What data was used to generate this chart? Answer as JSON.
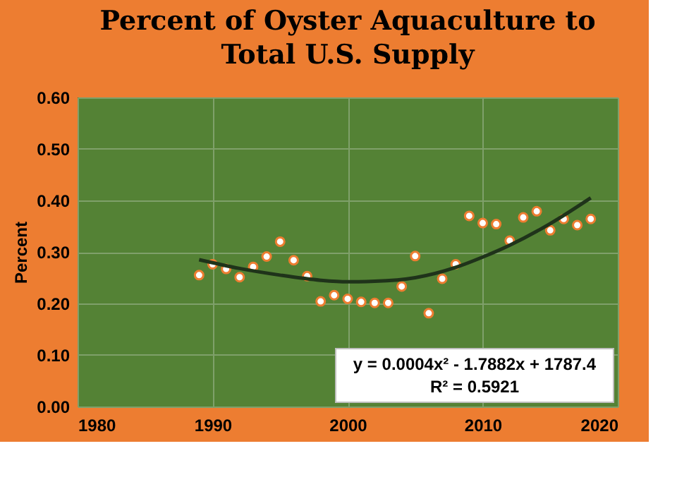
{
  "chart_data": {
    "type": "scatter",
    "title": "Percent of Oyster Aquaculture to\nTotal U.S. Supply",
    "ylabel": "Percent",
    "x": [
      1989,
      1990,
      1991,
      1992,
      1993,
      1994,
      1995,
      1996,
      1997,
      1998,
      1999,
      2000,
      2001,
      2002,
      2003,
      2004,
      2005,
      2006,
      2007,
      2008,
      2009,
      2010,
      2011,
      2012,
      2013,
      2014,
      2015,
      2016,
      2017,
      2018
    ],
    "series": [
      {
        "color": "#ffffff",
        "values": [
          0.255,
          0.276,
          0.267,
          0.251,
          0.271,
          0.291,
          0.32,
          0.284,
          0.253,
          0.204,
          0.216,
          0.209,
          0.203,
          0.201,
          0.201,
          0.233,
          0.292,
          0.181,
          0.248,
          0.276,
          0.37,
          0.356,
          0.354,
          0.322,
          0.367,
          0.379,
          0.342,
          0.364,
          0.352,
          0.364
        ]
      },
      {
        "type": "line",
        "marker": "none",
        "color": "#1f331a",
        "x": [
          1989,
          1992,
          1995,
          1998,
          2000,
          2002,
          2005,
          2008,
          2010,
          2012,
          2015,
          2018
        ],
        "values": [
          0.285,
          0.268,
          0.255,
          0.245,
          0.242,
          0.243,
          0.25,
          0.27,
          0.29,
          0.313,
          0.355,
          0.405
        ]
      }
    ],
    "annotations": [
      {
        "text": "y = 0.0004x² - 1.7882x + 1787.4"
      },
      {
        "text": "R² = 0.5921"
      }
    ],
    "xlim": [
      1980,
      2020
    ],
    "xticks": [
      1980,
      1990,
      2000,
      2010,
      2020
    ],
    "ylim": [
      0,
      0.6
    ],
    "yticks": [
      {
        "value": 0,
        "label": "0.00"
      },
      {
        "value": 0.1,
        "label": "0.10"
      },
      {
        "value": 0.2,
        "label": "0.20"
      },
      {
        "value": 0.3,
        "label": "0.30"
      },
      {
        "value": 0.4,
        "label": "0.40"
      },
      {
        "value": 0.5,
        "label": "0.50"
      },
      {
        "value": 0.6,
        "label": "0.60"
      }
    ],
    "grid": true,
    "marker": "circle"
  }
}
